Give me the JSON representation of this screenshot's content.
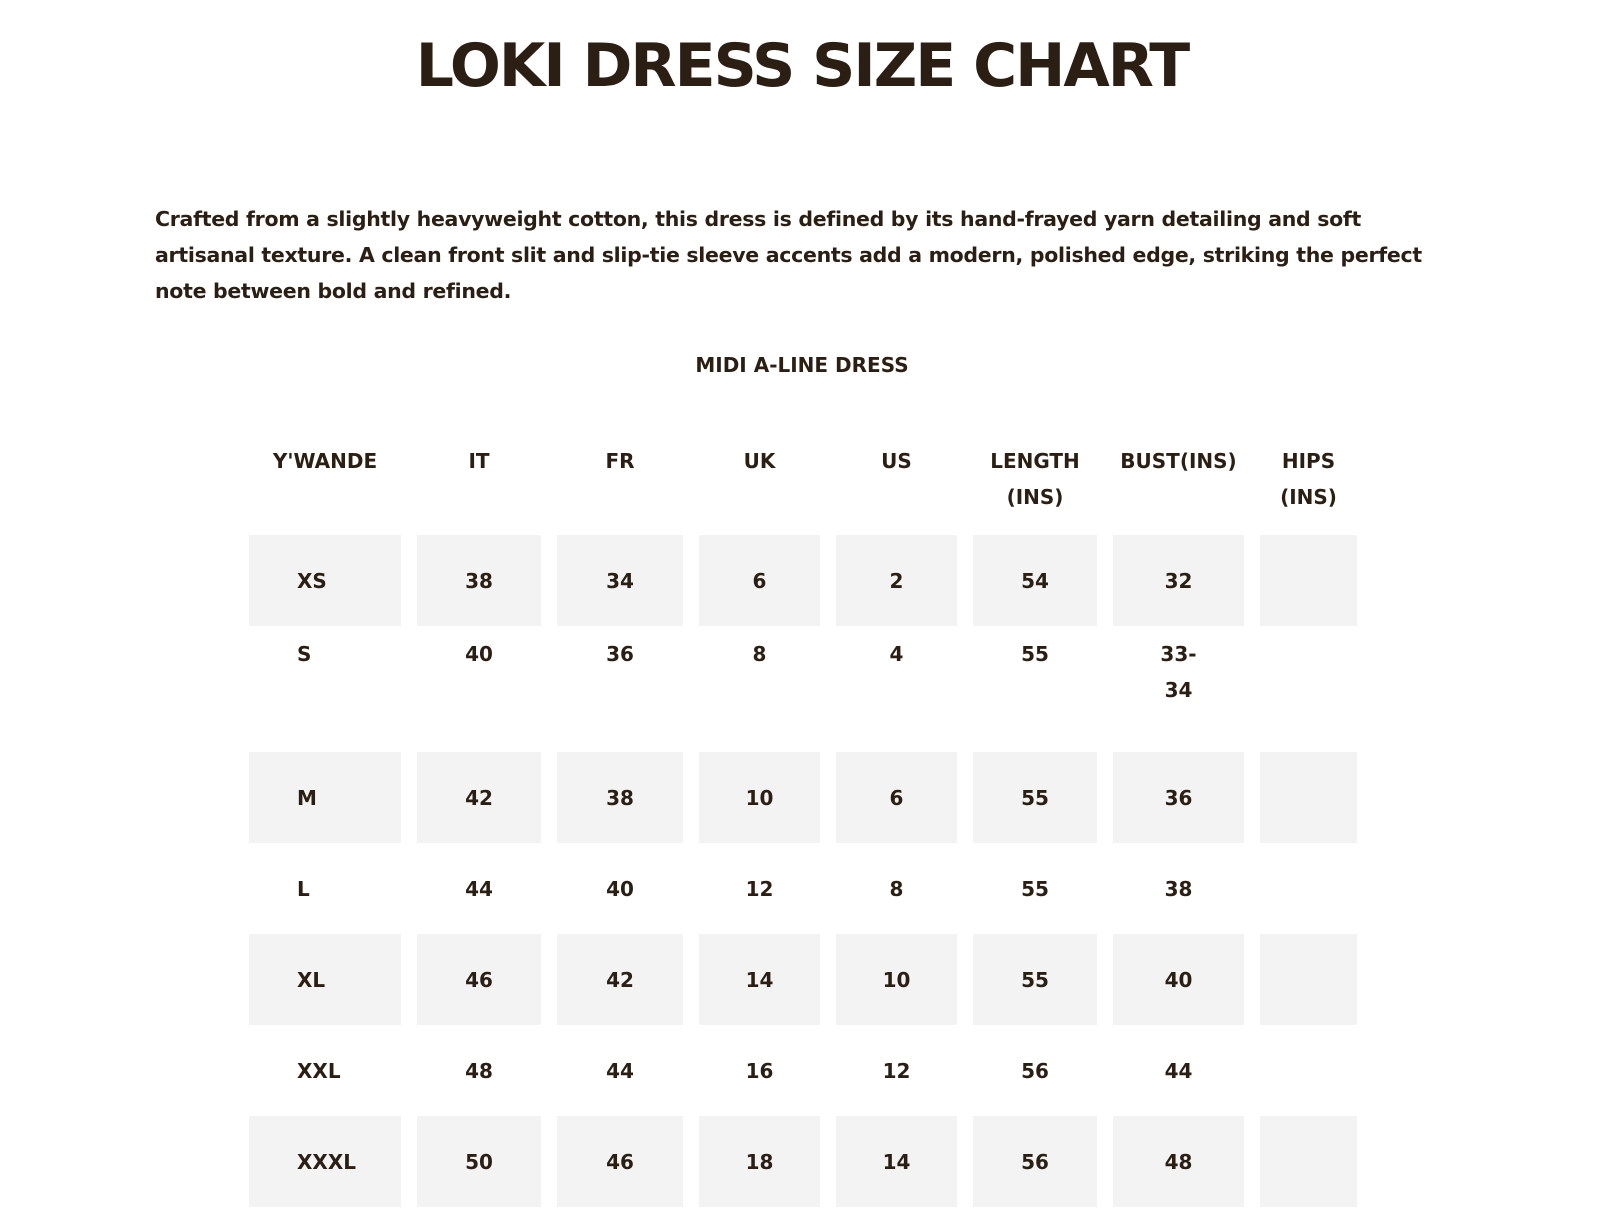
{
  "page": {
    "title": "LOKI DRESS SIZE CHART",
    "description": "Crafted from a slightly heavyweight cotton, this dress is defined by its hand-frayed yarn detailing and soft artisanal texture. A clean front slit and slip-tie sleeve accents add a modern, polished edge, striking the perfect note between bold and refined."
  },
  "table": {
    "caption": "MIDI A-LINE DRESS",
    "headers": [
      "Y'WANDE",
      "IT",
      "FR",
      "UK",
      "US",
      "LENGTH (INS)",
      "BUST(INS)",
      "HIPS (INS)"
    ],
    "rows": [
      [
        "XS",
        "38",
        "34",
        "6",
        "2",
        "54",
        "32",
        ""
      ],
      [
        "S",
        "40",
        "36",
        "8",
        "4",
        "55",
        "33-34",
        ""
      ],
      [
        "M",
        "42",
        "38",
        "10",
        "6",
        "55",
        "36",
        ""
      ],
      [
        "L",
        "44",
        "40",
        "12",
        "8",
        "55",
        "38",
        ""
      ],
      [
        "XL",
        "46",
        "42",
        "14",
        "10",
        "55",
        "40",
        ""
      ],
      [
        "XXL",
        "48",
        "44",
        "16",
        "12",
        "56",
        "44",
        ""
      ],
      [
        "XXXL",
        "50",
        "46",
        "18",
        "14",
        "56",
        "48",
        ""
      ]
    ]
  },
  "colors": {
    "text": "#2b1f14",
    "shaded_cell": "#f3f3f3",
    "background": "#ffffff"
  }
}
